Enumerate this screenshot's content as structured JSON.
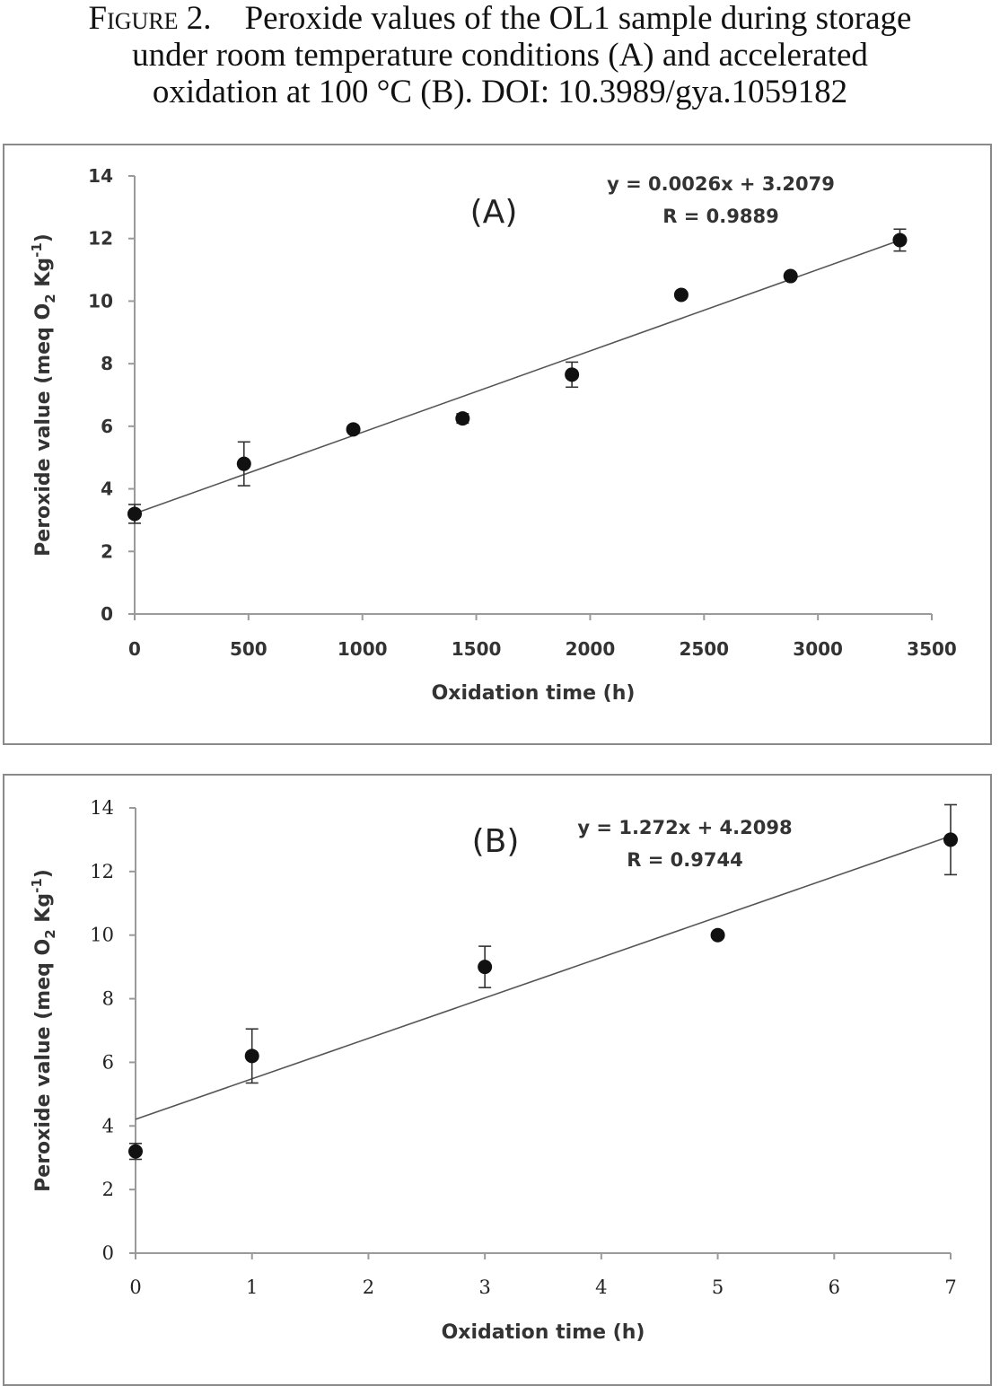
{
  "caption": {
    "label": "Figure 2.",
    "line1": "Peroxide values of the OL1 sample during storage",
    "line2": "under room temperature conditions (A) and accelerated",
    "line3": "oxidation at 100 °C (B). DOI: 10.3989/gya.1059182"
  },
  "chart_data": [
    {
      "type": "scatter",
      "panel_label": "(A)",
      "xlabel": "Oxidation time (h)",
      "ylabel": "Peroxide value (meq O2 Kg-1)",
      "ylabel_parts": {
        "a": "Peroxide value (meq O",
        "sub": "2",
        "b": " Kg",
        "sup": "-1",
        "c": ")"
      },
      "xlim": [
        0,
        3500
      ],
      "ylim": [
        0,
        14
      ],
      "xticks": [
        0,
        500,
        1000,
        1500,
        2000,
        2500,
        3000,
        3500
      ],
      "yticks": [
        0,
        2,
        4,
        6,
        8,
        10,
        12,
        14
      ],
      "x": [
        0,
        480,
        960,
        1440,
        1920,
        2400,
        2880,
        3360
      ],
      "y": [
        3.2,
        4.8,
        5.9,
        6.25,
        7.65,
        10.2,
        10.8,
        11.95
      ],
      "error": [
        0.3,
        0.7,
        0.1,
        0.15,
        0.4,
        0.1,
        0.1,
        0.35
      ],
      "trendline": {
        "slope": 0.0026,
        "intercept": 3.2079,
        "x_range": [
          0,
          3360
        ]
      },
      "equation": "y = 0.0026x + 3.2079",
      "r_text": "R = 0.9889",
      "grid": false,
      "legend": "none"
    },
    {
      "type": "scatter",
      "panel_label": "(B)",
      "xlabel": "Oxidation time (h)",
      "ylabel": "Peroxide value (meq O2 Kg-1)",
      "ylabel_parts": {
        "a": "Peroxide value (meq O",
        "sub": "2",
        "b": " Kg",
        "sup": "-1",
        "c": ")"
      },
      "xlim": [
        0,
        7
      ],
      "ylim": [
        0,
        14
      ],
      "xticks": [
        0,
        1,
        2,
        3,
        4,
        5,
        6,
        7
      ],
      "yticks": [
        0,
        2,
        4,
        6,
        8,
        10,
        12,
        14
      ],
      "x": [
        0,
        1,
        3,
        5,
        7
      ],
      "y": [
        3.2,
        6.2,
        9.0,
        10.0,
        13.0
      ],
      "error": [
        0.25,
        0.85,
        0.65,
        0.05,
        1.1
      ],
      "trendline": {
        "slope": 1.272,
        "intercept": 4.2098,
        "x_range": [
          0,
          7
        ]
      },
      "equation": "y = 1.272x + 4.2098",
      "r_text": "R = 0.9744",
      "grid": false,
      "legend": "none"
    }
  ]
}
